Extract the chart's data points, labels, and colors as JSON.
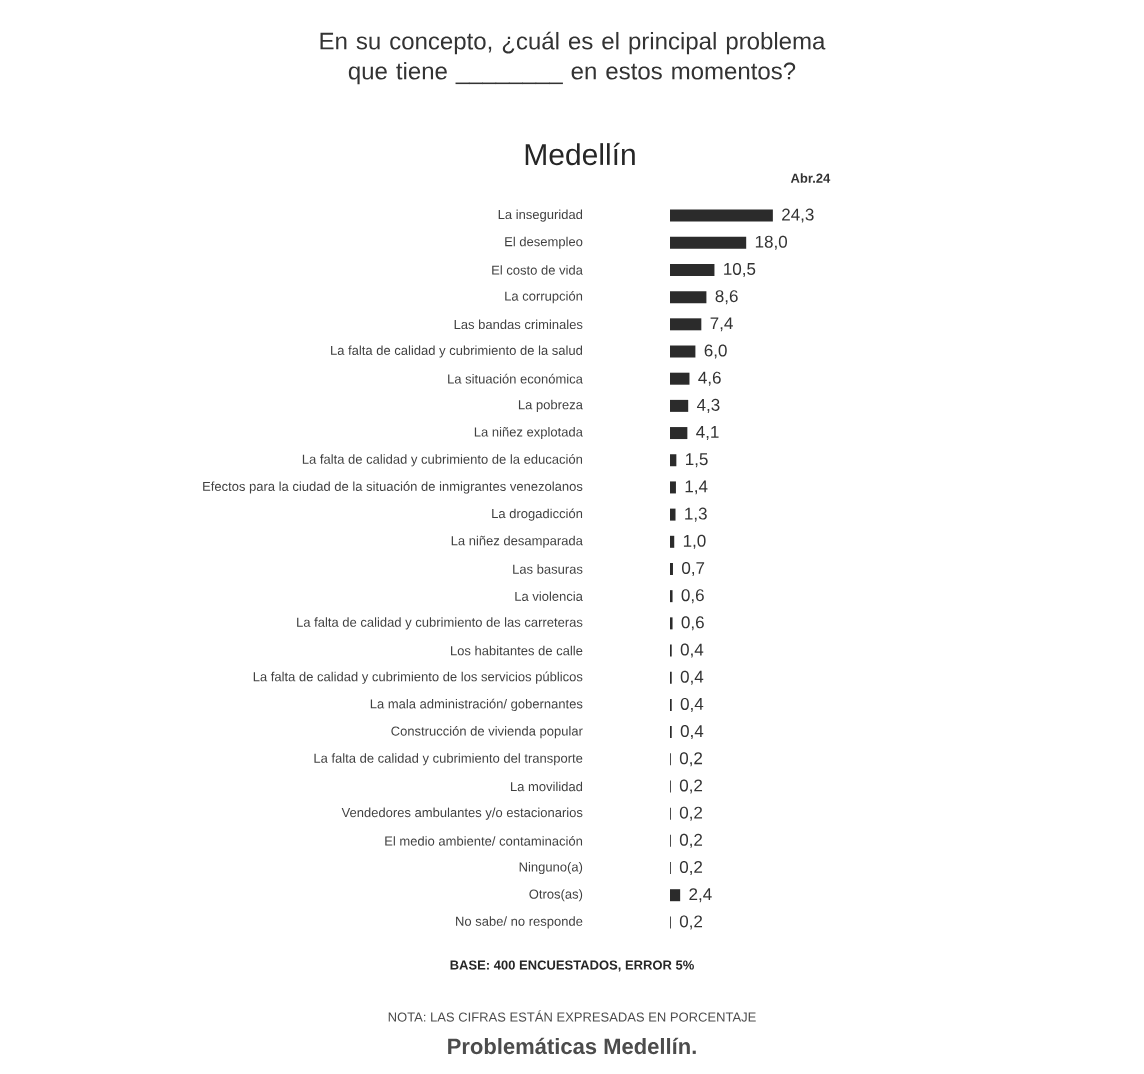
{
  "chart_data": {
    "type": "bar",
    "orientation": "horizontal",
    "title": "En su concepto, ¿cuál es el principal problema que tiene ________ en estos momentos?",
    "subtitle": "Medellín",
    "categories": [
      "La inseguridad",
      "El desempleo",
      "El costo de vida",
      "La corrupción",
      "Las bandas criminales",
      "La falta de calidad y cubrimiento de la salud",
      "La situación económica",
      "La pobreza",
      "La niñez explotada",
      "La falta de calidad y cubrimiento de la educación",
      "Efectos para la ciudad de la situación de inmigrantes venezolanos",
      "La drogadicción",
      "La niñez desamparada",
      "Las basuras",
      "La violencia",
      "La falta de calidad y cubrimiento de las carreteras",
      "Los habitantes de calle",
      "La falta de calidad y cubrimiento de los servicios públicos",
      "La mala administración/ gobernantes",
      "Construcción de vivienda popular",
      "La falta de calidad y cubrimiento del transporte",
      "La movilidad",
      "Vendedores ambulantes y/o estacionarios",
      "El medio ambiente/ contaminación",
      "Ninguno(a)",
      "Otros(as)",
      "No sabe/ no responde"
    ],
    "series": [
      {
        "name": "Abr.24",
        "color": "#2b2b2b",
        "values": [
          24.3,
          18.0,
          10.5,
          8.6,
          7.4,
          6.0,
          4.6,
          4.3,
          4.1,
          1.5,
          1.4,
          1.3,
          1.0,
          0.7,
          0.6,
          0.6,
          0.4,
          0.4,
          0.4,
          0.4,
          0.2,
          0.2,
          0.2,
          0.2,
          0.2,
          2.4,
          0.2
        ],
        "value_labels": [
          "24,3",
          "18,0",
          "10,5",
          "8,6",
          "7,4",
          "6,0",
          "4,6",
          "4,3",
          "4,1",
          "1,5",
          "1,4",
          "1,3",
          "1,0",
          "0,7",
          "0,6",
          "0,6",
          "0,4",
          "0,4",
          "0,4",
          "0,4",
          "0,2",
          "0,2",
          "0,2",
          "0,2",
          "0,2",
          "2,4",
          "0,2"
        ]
      }
    ],
    "annotations": [
      "BASE: 400 ENCUESTADOS, ERROR 5%",
      "NOTA: LAS CIFRAS ESTÁN EXPRESADAS EN PORCENTAJE",
      "Problemáticas Medellín."
    ]
  }
}
